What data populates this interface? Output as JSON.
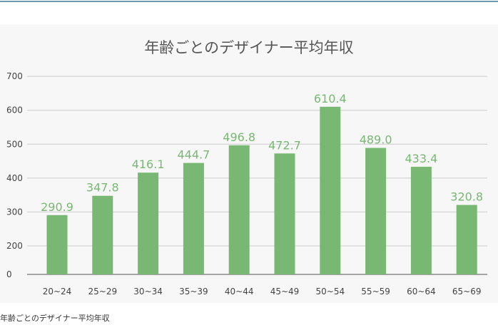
{
  "caption": "年齢ごとのデザイナー平均年収",
  "colors": {
    "bar": "#79b873",
    "label": "#79b873",
    "grid": "#cccccc",
    "axis": "#888888",
    "text": "#555555"
  },
  "chart_data": {
    "type": "bar",
    "title": "年齢ごとのデザイナー平均年収",
    "categories": [
      "20~24",
      "25~29",
      "30~34",
      "35~39",
      "40~44",
      "45~49",
      "50~54",
      "55~59",
      "60~64",
      "65~69"
    ],
    "values": [
      290.9,
      347.8,
      416.1,
      444.7,
      496.8,
      472.7,
      610.4,
      489.0,
      433.4,
      320.8
    ],
    "value_labels": [
      "290.9",
      "347.8",
      "416.1",
      "444.7",
      "496.8",
      "472.7",
      "610.4",
      "489.0",
      "433.4",
      "320.8"
    ],
    "yticks": [
      "0",
      "200",
      "300",
      "400",
      "500",
      "600",
      "700"
    ],
    "ytick_values": [
      0,
      200,
      300,
      400,
      500,
      600,
      700
    ],
    "ylim": [
      0,
      700
    ],
    "xlabel": "",
    "ylabel": "",
    "grid": true,
    "legend": "none"
  }
}
